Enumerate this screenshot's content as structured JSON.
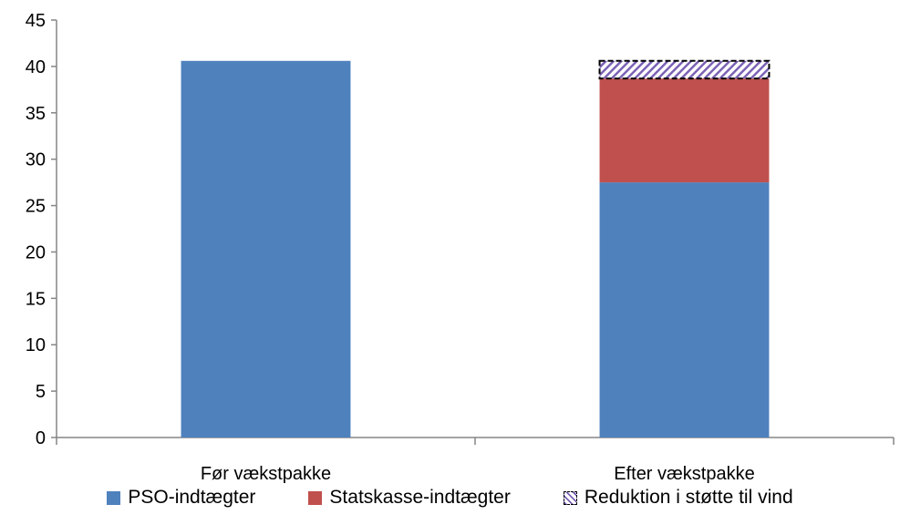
{
  "chart_data": {
    "type": "bar",
    "stacked": true,
    "categories": [
      "Før vækstpakke",
      "Efter vækstpakke"
    ],
    "series": [
      {
        "name": "PSO-indtægter",
        "values": [
          40.6,
          27.5
        ],
        "color": "#4f81bd",
        "pattern": "solid"
      },
      {
        "name": "Statskasse-indtægter",
        "values": [
          0,
          11.2
        ],
        "color": "#c0504d",
        "pattern": "solid"
      },
      {
        "name": "Reduktion i støtte til vind",
        "values": [
          0,
          1.9
        ],
        "color": "#7b62b5",
        "pattern": "hatched-dashed-outline"
      }
    ],
    "title": "",
    "xlabel": "",
    "ylabel": "",
    "ylim": [
      0,
      45
    ],
    "yticks": [
      0,
      5,
      10,
      15,
      20,
      25,
      30,
      35,
      40,
      45
    ],
    "grid": false,
    "legend_position": "bottom"
  }
}
